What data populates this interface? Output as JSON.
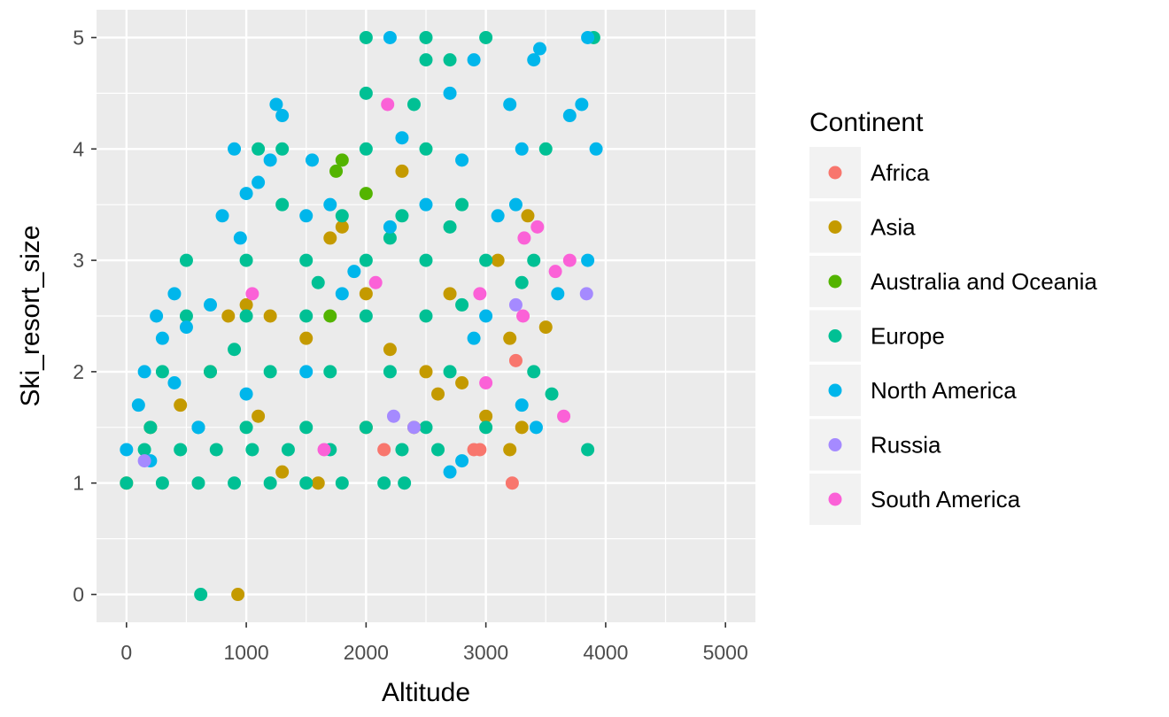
{
  "chart_data": {
    "type": "scatter",
    "xlabel": "Altitude",
    "ylabel": "Ski_resort_size",
    "xlim": [
      -250,
      5250
    ],
    "ylim": [
      -0.25,
      5.25
    ],
    "x_ticks": [
      0,
      1000,
      2000,
      3000,
      4000,
      5000
    ],
    "y_ticks": [
      0,
      1,
      2,
      3,
      4,
      5
    ],
    "grid": true,
    "legend": {
      "title": "Continent",
      "placement": "right"
    },
    "series": [
      {
        "name": "Africa",
        "color": "#F8766D",
        "points": [
          [
            3220,
            1.0
          ],
          [
            3250,
            2.1
          ],
          [
            2950,
            1.3
          ],
          [
            2900,
            1.3
          ],
          [
            2150,
            1.3
          ]
        ]
      },
      {
        "name": "Asia",
        "color": "#C49A00",
        "points": [
          [
            0,
            1.0
          ],
          [
            930,
            0.0
          ],
          [
            200,
            1.5
          ],
          [
            450,
            1.7
          ],
          [
            700,
            2.0
          ],
          [
            1000,
            2.6
          ],
          [
            1200,
            2.5
          ],
          [
            1500,
            2.3
          ],
          [
            1700,
            3.2
          ],
          [
            1800,
            3.3
          ],
          [
            2000,
            2.7
          ],
          [
            2200,
            2.2
          ],
          [
            2300,
            3.8
          ],
          [
            2500,
            2.0
          ],
          [
            2700,
            2.7
          ],
          [
            3000,
            1.6
          ],
          [
            3200,
            2.3
          ],
          [
            3300,
            1.5
          ],
          [
            3350,
            3.4
          ],
          [
            3500,
            2.4
          ],
          [
            2800,
            1.9
          ],
          [
            2400,
            1.5
          ],
          [
            1600,
            1.0
          ],
          [
            1300,
            1.1
          ],
          [
            2000,
            1.5
          ],
          [
            2600,
            1.8
          ],
          [
            1100,
            1.6
          ],
          [
            850,
            2.5
          ],
          [
            3100,
            3.0
          ],
          [
            3200,
            1.3
          ]
        ]
      },
      {
        "name": "Australia and Oceania",
        "color": "#53B400",
        "points": [
          [
            1750,
            3.8
          ],
          [
            1800,
            3.9
          ],
          [
            2000,
            3.6
          ],
          [
            1700,
            2.5
          ]
        ]
      },
      {
        "name": "Europe",
        "color": "#00C094",
        "points": [
          [
            620,
            0.0
          ],
          [
            3850,
            1.3
          ],
          [
            3900,
            5.0
          ],
          [
            2000,
            5.0
          ],
          [
            2500,
            5.0
          ],
          [
            3000,
            5.0
          ],
          [
            2500,
            4.8
          ],
          [
            2700,
            4.8
          ],
          [
            2000,
            4.5
          ],
          [
            2400,
            4.4
          ],
          [
            1100,
            4.0
          ],
          [
            1300,
            4.0
          ],
          [
            2000,
            4.0
          ],
          [
            2500,
            4.0
          ],
          [
            3500,
            4.0
          ],
          [
            1300,
            3.5
          ],
          [
            1800,
            3.4
          ],
          [
            2300,
            3.4
          ],
          [
            2700,
            3.3
          ],
          [
            500,
            3.0
          ],
          [
            1000,
            3.0
          ],
          [
            1500,
            3.0
          ],
          [
            2000,
            3.0
          ],
          [
            2500,
            3.0
          ],
          [
            3000,
            3.0
          ],
          [
            3400,
            3.0
          ],
          [
            500,
            2.5
          ],
          [
            1000,
            2.5
          ],
          [
            1500,
            2.5
          ],
          [
            2000,
            2.5
          ],
          [
            2500,
            2.5
          ],
          [
            300,
            2.0
          ],
          [
            700,
            2.0
          ],
          [
            1200,
            2.0
          ],
          [
            1700,
            2.0
          ],
          [
            2200,
            2.0
          ],
          [
            2700,
            2.0
          ],
          [
            3400,
            2.0
          ],
          [
            200,
            1.5
          ],
          [
            600,
            1.5
          ],
          [
            1000,
            1.5
          ],
          [
            1500,
            1.5
          ],
          [
            2000,
            1.5
          ],
          [
            2500,
            1.5
          ],
          [
            3000,
            1.5
          ],
          [
            0,
            1.0
          ],
          [
            300,
            1.0
          ],
          [
            600,
            1.0
          ],
          [
            900,
            1.0
          ],
          [
            1200,
            1.0
          ],
          [
            1500,
            1.0
          ],
          [
            1800,
            1.0
          ],
          [
            2150,
            1.0
          ],
          [
            2320,
            1.0
          ],
          [
            150,
            1.3
          ],
          [
            450,
            1.3
          ],
          [
            750,
            1.3
          ],
          [
            1050,
            1.3
          ],
          [
            1350,
            1.3
          ],
          [
            1700,
            1.3
          ],
          [
            2300,
            1.3
          ],
          [
            2600,
            1.3
          ],
          [
            3550,
            1.8
          ],
          [
            2800,
            2.6
          ],
          [
            900,
            2.2
          ],
          [
            1600,
            2.8
          ],
          [
            2200,
            3.2
          ],
          [
            2800,
            3.5
          ],
          [
            3300,
            2.8
          ]
        ]
      },
      {
        "name": "North America",
        "color": "#00B6EB",
        "points": [
          [
            0,
            1.3
          ],
          [
            100,
            1.7
          ],
          [
            150,
            2.0
          ],
          [
            250,
            2.5
          ],
          [
            300,
            2.3
          ],
          [
            400,
            2.7
          ],
          [
            500,
            2.4
          ],
          [
            700,
            2.6
          ],
          [
            800,
            3.4
          ],
          [
            900,
            4.0
          ],
          [
            950,
            3.2
          ],
          [
            1000,
            3.6
          ],
          [
            1100,
            3.7
          ],
          [
            1200,
            3.9
          ],
          [
            1250,
            4.4
          ],
          [
            1300,
            4.3
          ],
          [
            1500,
            3.4
          ],
          [
            1550,
            3.9
          ],
          [
            1700,
            3.5
          ],
          [
            1900,
            2.9
          ],
          [
            2200,
            3.3
          ],
          [
            2500,
            3.5
          ],
          [
            2800,
            3.9
          ],
          [
            3000,
            2.5
          ],
          [
            3100,
            3.4
          ],
          [
            3200,
            4.4
          ],
          [
            3300,
            4.0
          ],
          [
            3400,
            4.8
          ],
          [
            3450,
            4.9
          ],
          [
            3700,
            4.3
          ],
          [
            3800,
            4.4
          ],
          [
            3850,
            5.0
          ],
          [
            3850,
            3.0
          ],
          [
            3920,
            4.0
          ],
          [
            2200,
            5.0
          ],
          [
            2700,
            4.5
          ],
          [
            2300,
            4.1
          ],
          [
            1800,
            2.7
          ],
          [
            1500,
            2.0
          ],
          [
            2800,
            1.2
          ],
          [
            2900,
            2.3
          ],
          [
            2700,
            1.1
          ],
          [
            3300,
            1.7
          ],
          [
            3420,
            1.5
          ],
          [
            3600,
            2.7
          ],
          [
            1000,
            1.8
          ],
          [
            600,
            1.5
          ],
          [
            400,
            1.9
          ],
          [
            200,
            1.2
          ],
          [
            2900,
            4.8
          ],
          [
            3250,
            3.5
          ]
        ]
      },
      {
        "name": "Russia",
        "color": "#A58AFF",
        "points": [
          [
            3840,
            2.7
          ],
          [
            2400,
            1.5
          ],
          [
            3250,
            2.6
          ],
          [
            2230,
            1.6
          ],
          [
            150,
            1.2
          ]
        ]
      },
      {
        "name": "South America",
        "color": "#FB61D7",
        "points": [
          [
            2180,
            4.4
          ],
          [
            3320,
            3.2
          ],
          [
            3430,
            3.3
          ],
          [
            3580,
            2.9
          ],
          [
            3700,
            3.0
          ],
          [
            2950,
            2.7
          ],
          [
            3310,
            2.5
          ],
          [
            3650,
            1.6
          ],
          [
            3000,
            1.9
          ],
          [
            2080,
            2.8
          ],
          [
            1050,
            2.7
          ],
          [
            1650,
            1.3
          ]
        ]
      }
    ]
  }
}
